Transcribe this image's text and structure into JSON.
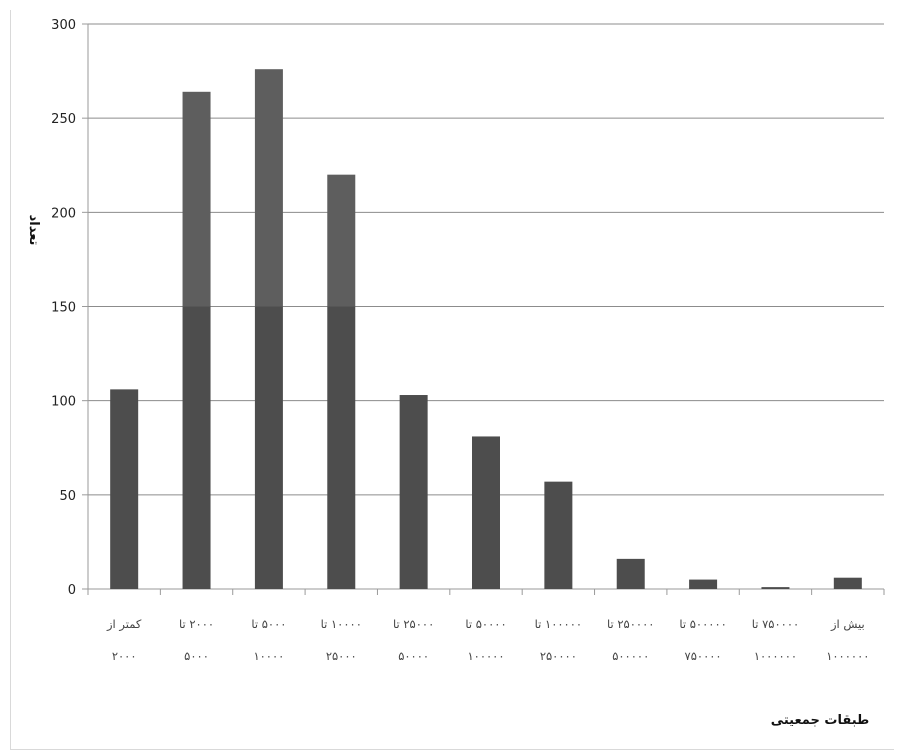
{
  "chart_data": {
    "type": "bar",
    "title": "",
    "xlabel": "طبقات جمعیتی",
    "ylabel": "تعداد",
    "ylim": [
      0,
      300
    ],
    "yticks": [
      0,
      50,
      100,
      150,
      200,
      250,
      300
    ],
    "grid": true,
    "categories": [
      [
        "کمتر از",
        "۲۰۰۰"
      ],
      [
        "۲۰۰۰ تا",
        "۵۰۰۰"
      ],
      [
        "۵۰۰۰ تا",
        "۱۰۰۰۰"
      ],
      [
        "۱۰۰۰۰ تا",
        "۲۵۰۰۰"
      ],
      [
        "۲۵۰۰۰ تا",
        "۵۰۰۰۰"
      ],
      [
        "۵۰۰۰۰ تا",
        "۱۰۰۰۰۰"
      ],
      [
        "۱۰۰۰۰۰ تا",
        "۲۵۰۰۰۰"
      ],
      [
        "۲۵۰۰۰۰ تا",
        "۵۰۰۰۰۰"
      ],
      [
        "۵۰۰۰۰۰ تا",
        "۷۵۰۰۰۰"
      ],
      [
        "۷۵۰۰۰۰ تا",
        "۱۰۰۰۰۰۰"
      ],
      [
        "بیش از",
        "۱۰۰۰۰۰۰"
      ]
    ],
    "values": [
      106,
      264,
      276,
      220,
      103,
      81,
      57,
      16,
      5,
      1,
      6
    ],
    "colors": {
      "bar": "#4d4d4d",
      "bar_upper": "#5e5e5e",
      "grid": "#8c8c8c",
      "axis": "#9a9a9a"
    }
  }
}
